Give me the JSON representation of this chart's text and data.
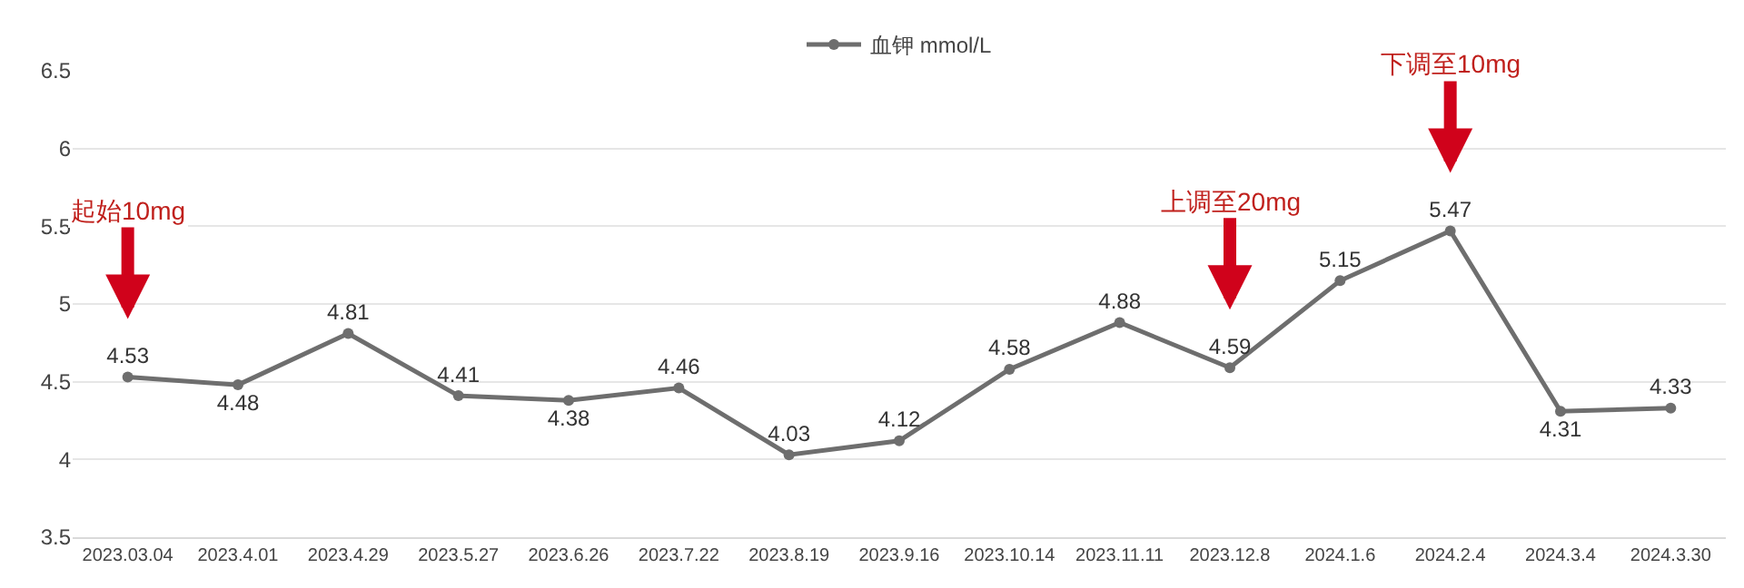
{
  "chart_data": {
    "type": "line",
    "categories": [
      "2023.03.04",
      "2023.4.01",
      "2023.4.29",
      "2023.5.27",
      "2023.6.26",
      "2023.7.22",
      "2023.8.19",
      "2023.9.16",
      "2023.10.14",
      "2023.11.11",
      "2023.12.8",
      "2024.1.6",
      "2024.2.4",
      "2024.3.4",
      "2024.3.30"
    ],
    "series": [
      {
        "name": "血钾 mmol/L",
        "color": "#6e6e6e",
        "values": [
          4.53,
          4.48,
          4.81,
          4.41,
          4.38,
          4.46,
          4.03,
          4.12,
          4.58,
          4.88,
          4.59,
          5.15,
          5.47,
          4.31,
          4.33
        ]
      }
    ],
    "ylim": [
      3.5,
      6.5
    ],
    "yticks": [
      3.5,
      4,
      4.5,
      5,
      5.5,
      6,
      6.5
    ],
    "grid": "y",
    "legend": "top",
    "marker": "circle",
    "line_style": "solid",
    "data_labels": true,
    "annotations": [
      {
        "text": "起始10mg",
        "x": "2023.03.04",
        "y": 4.53
      },
      {
        "text": "上调至20mg",
        "x": "2023.12.8",
        "y": 4.59
      },
      {
        "text": "下调至10mg",
        "x": "2024.2.4",
        "y": 5.47
      }
    ]
  }
}
